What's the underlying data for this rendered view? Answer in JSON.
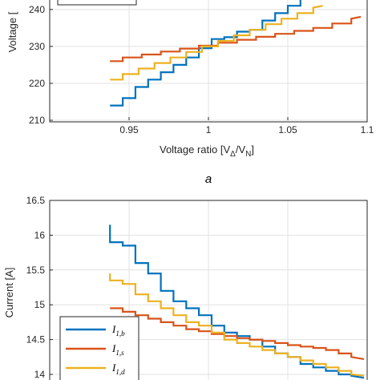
{
  "chart_data": [
    {
      "type": "line",
      "panel_label": "a",
      "xlabel": "Voltage ratio [VΔ/VN]",
      "xlabel_main": "Voltage ratio [V",
      "xlabel_sub1": "Δ",
      "xlabel_mid": "/V",
      "xlabel_sub2": "N",
      "xlabel_end": "]",
      "ylabel": "Voltage [",
      "xlim": [
        0.9,
        1.1
      ],
      "ylim": [
        210,
        243
      ],
      "xticks": [
        "0.95",
        "1",
        "1.05",
        "1.1"
      ],
      "xtick_values": [
        0.95,
        1.0,
        1.05,
        1.1
      ],
      "yticks": [
        "210",
        "220",
        "230",
        "240"
      ],
      "ytick_values": [
        210,
        220,
        230,
        240
      ],
      "grid": true,
      "legend": "top-left",
      "series": [
        {
          "color": "#0072BD",
          "x": [
            0.938,
            0.946,
            0.946,
            0.954,
            0.954,
            0.962,
            0.962,
            0.97,
            0.97,
            0.978,
            0.978,
            0.986,
            0.986,
            0.994,
            0.994,
            1.002,
            1.002,
            1.01,
            1.01,
            1.018,
            1.018,
            1.026,
            1.026,
            1.034,
            1.034,
            1.042,
            1.042,
            1.05,
            1.05,
            1.058,
            1.058
          ],
          "y": [
            214,
            214,
            216,
            216,
            219,
            219,
            221,
            221,
            223,
            223,
            225,
            225,
            227,
            227,
            229.5,
            229.5,
            232,
            232,
            232.5,
            232.5,
            234,
            234,
            234.5,
            234.5,
            237,
            237,
            239,
            239,
            241,
            241,
            243
          ]
        },
        {
          "color": "#D95319",
          "x": [
            0.938,
            0.946,
            0.946,
            0.958,
            0.958,
            0.97,
            0.97,
            0.982,
            0.982,
            0.994,
            0.994,
            1.006,
            1.006,
            1.018,
            1.018,
            1.03,
            1.03,
            1.042,
            1.042,
            1.054,
            1.054,
            1.066,
            1.066,
            1.078,
            1.078,
            1.09,
            1.09,
            1.096
          ],
          "y": [
            226,
            226,
            227,
            227,
            227.8,
            227.8,
            228.6,
            228.6,
            229.4,
            229.4,
            230.2,
            230.2,
            231,
            231,
            231.8,
            231.8,
            232.6,
            232.6,
            233.4,
            233.4,
            234.2,
            234.2,
            235,
            235,
            236.2,
            236.2,
            237.5,
            238
          ]
        },
        {
          "color": "#EDB120",
          "x": [
            0.938,
            0.946,
            0.946,
            0.956,
            0.956,
            0.966,
            0.966,
            0.976,
            0.976,
            0.986,
            0.986,
            0.996,
            0.996,
            1.006,
            1.006,
            1.016,
            1.016,
            1.026,
            1.026,
            1.036,
            1.036,
            1.046,
            1.046,
            1.056,
            1.056,
            1.066,
            1.066,
            1.072
          ],
          "y": [
            221,
            221,
            222.5,
            222.5,
            224,
            224,
            225.5,
            225.5,
            227,
            227,
            228.5,
            228.5,
            230,
            230,
            231.5,
            231.5,
            233,
            233,
            234.5,
            234.5,
            236,
            236,
            237.5,
            237.5,
            239,
            239,
            240.5,
            241
          ]
        }
      ]
    },
    {
      "type": "line",
      "xlabel": "",
      "ylabel": "Current [A]",
      "xlim": [
        0.9,
        1.1
      ],
      "ylim": [
        13.85,
        16.5
      ],
      "xticks": [],
      "yticks": [
        "14",
        "14.5",
        "15",
        "15.5",
        "16",
        "16.5"
      ],
      "ytick_values": [
        14,
        14.5,
        15,
        15.5,
        16,
        16.5
      ],
      "grid": true,
      "legend": "bottom-left",
      "legend_entries": [
        {
          "main": "I",
          "sub": "1,b",
          "color": "#0072BD"
        },
        {
          "main": "I",
          "sub": "1,s",
          "color": "#D95319"
        },
        {
          "main": "I",
          "sub": "1,d",
          "color": "#EDB120"
        }
      ],
      "series": [
        {
          "color": "#0072BD",
          "x": [
            0.938,
            0.938,
            0.946,
            0.946,
            0.954,
            0.954,
            0.962,
            0.962,
            0.97,
            0.97,
            0.978,
            0.978,
            0.986,
            0.986,
            0.994,
            0.994,
            1.002,
            1.002,
            1.01,
            1.01,
            1.018,
            1.018,
            1.026,
            1.026,
            1.034,
            1.034,
            1.042,
            1.042,
            1.05,
            1.05,
            1.058,
            1.058,
            1.066,
            1.066,
            1.074,
            1.074,
            1.082,
            1.082,
            1.09,
            1.09,
            1.098
          ],
          "y": [
            16.15,
            15.9,
            15.9,
            15.85,
            15.85,
            15.6,
            15.6,
            15.45,
            15.45,
            15.2,
            15.2,
            15.05,
            15.05,
            14.95,
            14.95,
            14.85,
            14.85,
            14.7,
            14.7,
            14.6,
            14.6,
            14.55,
            14.55,
            14.5,
            14.5,
            14.4,
            14.4,
            14.3,
            14.3,
            14.25,
            14.25,
            14.15,
            14.15,
            14.1,
            14.1,
            14.05,
            14.05,
            14.0,
            14.0,
            13.98,
            13.95
          ]
        },
        {
          "color": "#D95319",
          "x": [
            0.938,
            0.946,
            0.946,
            0.954,
            0.954,
            0.962,
            0.962,
            0.97,
            0.97,
            0.978,
            0.978,
            0.986,
            0.986,
            0.994,
            0.994,
            1.002,
            1.002,
            1.01,
            1.01,
            1.018,
            1.018,
            1.026,
            1.026,
            1.034,
            1.034,
            1.042,
            1.042,
            1.05,
            1.05,
            1.058,
            1.058,
            1.066,
            1.066,
            1.074,
            1.074,
            1.082,
            1.082,
            1.09,
            1.09,
            1.098
          ],
          "y": [
            14.95,
            14.95,
            14.9,
            14.9,
            14.85,
            14.85,
            14.8,
            14.8,
            14.75,
            14.75,
            14.7,
            14.7,
            14.65,
            14.65,
            14.62,
            14.62,
            14.58,
            14.58,
            14.55,
            14.55,
            14.52,
            14.52,
            14.5,
            14.5,
            14.48,
            14.48,
            14.45,
            14.45,
            14.42,
            14.42,
            14.4,
            14.4,
            14.38,
            14.38,
            14.35,
            14.35,
            14.3,
            14.3,
            14.25,
            14.22
          ]
        },
        {
          "color": "#EDB120",
          "x": [
            0.938,
            0.938,
            0.946,
            0.946,
            0.954,
            0.954,
            0.962,
            0.962,
            0.97,
            0.97,
            0.978,
            0.978,
            0.986,
            0.986,
            0.994,
            0.994,
            1.002,
            1.002,
            1.01,
            1.01,
            1.018,
            1.018,
            1.026,
            1.026,
            1.034,
            1.034,
            1.042,
            1.042,
            1.05,
            1.05,
            1.058,
            1.058,
            1.066,
            1.066,
            1.074,
            1.074,
            1.082,
            1.082,
            1.09,
            1.09,
            1.098
          ],
          "y": [
            15.45,
            15.35,
            15.35,
            15.3,
            15.3,
            15.15,
            15.15,
            15.05,
            15.05,
            14.95,
            14.95,
            14.85,
            14.85,
            14.75,
            14.75,
            14.7,
            14.7,
            14.6,
            14.6,
            14.5,
            14.5,
            14.45,
            14.45,
            14.4,
            14.4,
            14.35,
            14.35,
            14.3,
            14.3,
            14.25,
            14.25,
            14.2,
            14.2,
            14.15,
            14.15,
            14.1,
            14.1,
            14.05,
            14.05,
            14.0,
            13.98
          ]
        }
      ]
    }
  ]
}
